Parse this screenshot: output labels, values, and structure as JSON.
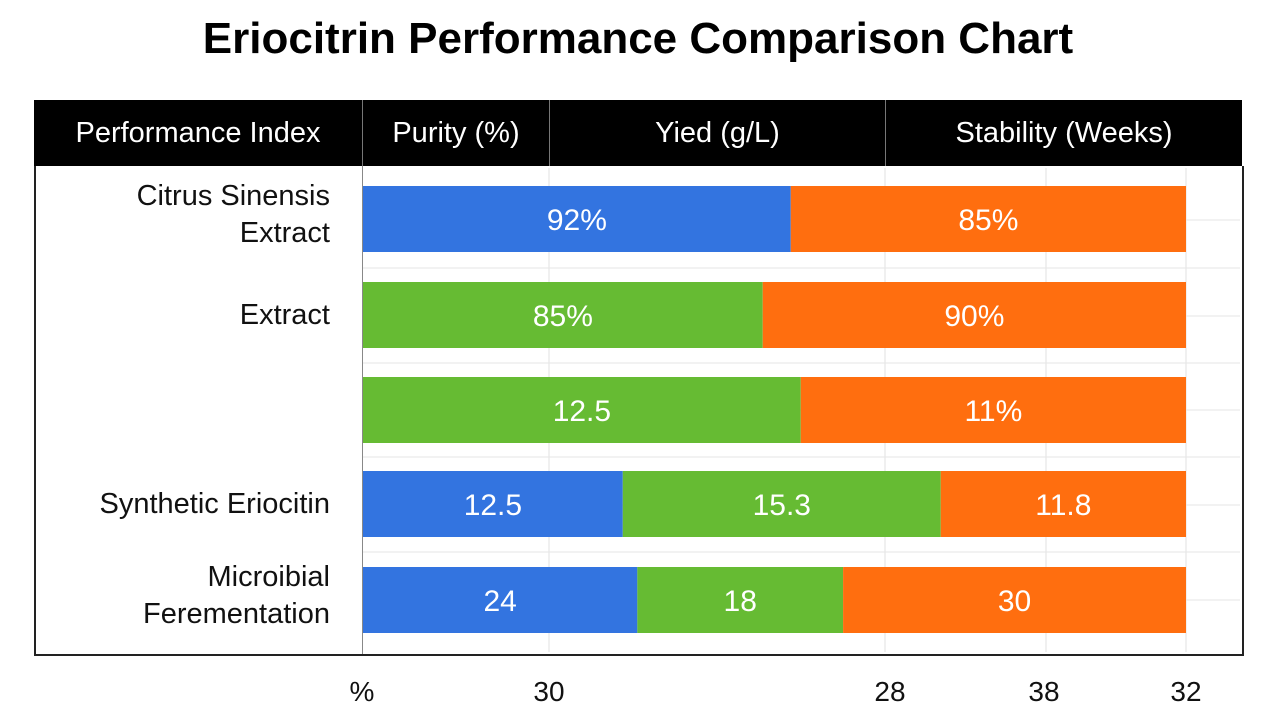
{
  "chart_data": {
    "type": "bar",
    "orientation": "horizontal",
    "stacked": true,
    "title": "Eriocitrin Performance Comparison Chart",
    "header": {
      "columns": [
        "Performance Index",
        "Purity (%)",
        "Yied (g/L)",
        "Stability (Weeks)"
      ]
    },
    "colors": {
      "blue": "#3374E0",
      "green": "#66BB33",
      "orange": "#FF6E0F",
      "header_bg": "#000000"
    },
    "rows": [
      {
        "label": "Citrus Sinensis\nExtract",
        "segments": [
          {
            "color": "blue",
            "value": 92,
            "label": "92%"
          },
          {
            "color": "orange",
            "value": 85,
            "label": "85%"
          }
        ]
      },
      {
        "label": "Extract",
        "segments": [
          {
            "color": "green",
            "value": 85,
            "label": "85%"
          },
          {
            "color": "orange",
            "value": 90,
            "label": "90%"
          }
        ]
      },
      {
        "label": "",
        "segments": [
          {
            "color": "green",
            "value": 12.5,
            "label": "12.5"
          },
          {
            "color": "orange",
            "value": 11,
            "label": "11%"
          }
        ]
      },
      {
        "label": "Synthetic Eriocitin",
        "segments": [
          {
            "color": "blue",
            "value": 12.5,
            "label": "12.5"
          },
          {
            "color": "green",
            "value": 15.3,
            "label": "15.3"
          },
          {
            "color": "orange",
            "value": 11.8,
            "label": "11.8"
          }
        ]
      },
      {
        "label": "Microibial\nFerementation",
        "segments": [
          {
            "color": "blue",
            "value": 24,
            "label": "24"
          },
          {
            "color": "green",
            "value": 18,
            "label": "18"
          },
          {
            "color": "orange",
            "value": 30,
            "label": "30"
          }
        ]
      }
    ],
    "x_tick_labels": [
      "%",
      "30",
      "28",
      "38",
      "32"
    ],
    "grid": true,
    "legend": "none"
  }
}
